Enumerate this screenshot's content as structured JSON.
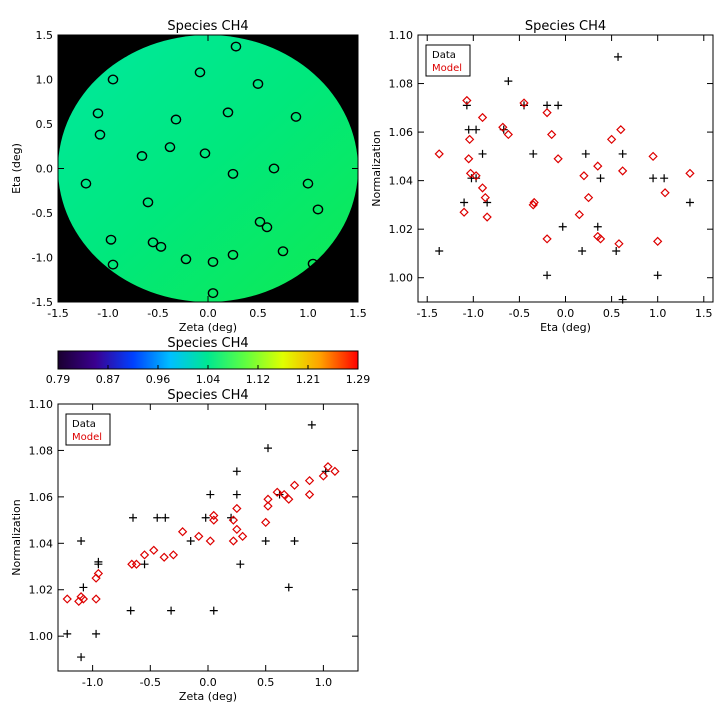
{
  "colors": {
    "data": "#000000",
    "model": "#dd0000",
    "colorbar": [
      "#1a0030",
      "#3a0090",
      "#0040ff",
      "#00c0ff",
      "#00e890",
      "#60ff40",
      "#e0ff00",
      "#ffa000",
      "#ff0000"
    ]
  },
  "map_panel": {
    "title": "Species CH4",
    "xlabel": "Zeta (deg)",
    "ylabel": "Eta (deg)",
    "xlim": [
      -1.5,
      1.5
    ],
    "ylim": [
      -1.5,
      1.5
    ],
    "xticks": [
      "-1.5",
      "-1.0",
      "-0.5",
      "0.0",
      "0.5",
      "1.0",
      "1.5"
    ],
    "yticks": [
      "-1.5",
      "-1.0",
      "-0.5",
      "0.0",
      "0.5",
      "1.0",
      "1.5"
    ],
    "circles": [
      [
        -0.95,
        1.0
      ],
      [
        0.28,
        1.37
      ],
      [
        -0.08,
        1.08
      ],
      [
        0.5,
        0.95
      ],
      [
        -1.1,
        0.62
      ],
      [
        -1.08,
        0.38
      ],
      [
        -0.32,
        0.55
      ],
      [
        0.2,
        0.63
      ],
      [
        0.88,
        0.58
      ],
      [
        -0.38,
        0.24
      ],
      [
        -0.03,
        0.17
      ],
      [
        -0.66,
        0.14
      ],
      [
        0.66,
        0.0
      ],
      [
        0.25,
        -0.06
      ],
      [
        -1.22,
        -0.17
      ],
      [
        1.0,
        -0.17
      ],
      [
        -0.6,
        -0.38
      ],
      [
        1.1,
        -0.46
      ],
      [
        0.52,
        -0.6
      ],
      [
        0.59,
        -0.66
      ],
      [
        -0.97,
        -0.8
      ],
      [
        -0.55,
        -0.83
      ],
      [
        -0.47,
        -0.88
      ],
      [
        0.75,
        -0.93
      ],
      [
        0.25,
        -0.97
      ],
      [
        -0.22,
        -1.02
      ],
      [
        0.05,
        -1.05
      ],
      [
        -0.95,
        -1.08
      ],
      [
        1.05,
        -1.07
      ],
      [
        0.05,
        -1.4
      ]
    ]
  },
  "colorbar": {
    "title": "Species CH4",
    "tick_labels": [
      "0.79",
      "0.87",
      "0.96",
      "1.04",
      "1.12",
      "1.21",
      "1.29"
    ]
  },
  "chart_data": [
    {
      "type": "scatter",
      "title": "Species CH4",
      "xlabel": "Eta (deg)",
      "ylabel": "Normalization",
      "xlim": [
        -1.6,
        1.6
      ],
      "ylim": [
        0.99,
        1.1
      ],
      "xticks": [
        "-1.5",
        "-1.0",
        "-0.5",
        "0.0",
        "0.5",
        "1.0",
        "1.5"
      ],
      "yticks": [
        "1.00",
        "1.02",
        "1.04",
        "1.06",
        "1.08",
        "1.10"
      ],
      "legend": {
        "position": "top-left",
        "entries": [
          "Data",
          "Model"
        ]
      },
      "series": [
        {
          "name": "Data",
          "marker": "plus",
          "points": [
            [
              0.57,
              1.091
            ],
            [
              -0.62,
              1.081
            ],
            [
              -1.07,
              1.071
            ],
            [
              -0.45,
              1.071
            ],
            [
              -0.2,
              1.071
            ],
            [
              -0.08,
              1.071
            ],
            [
              -1.05,
              1.061
            ],
            [
              -0.97,
              1.061
            ],
            [
              -0.67,
              1.061
            ],
            [
              -0.9,
              1.051
            ],
            [
              -0.35,
              1.051
            ],
            [
              0.22,
              1.051
            ],
            [
              0.62,
              1.051
            ],
            [
              -0.97,
              1.041
            ],
            [
              -1.02,
              1.041
            ],
            [
              0.38,
              1.041
            ],
            [
              0.95,
              1.041
            ],
            [
              1.07,
              1.041
            ],
            [
              -1.1,
              1.031
            ],
            [
              -0.85,
              1.031
            ],
            [
              1.35,
              1.031
            ],
            [
              -0.03,
              1.021
            ],
            [
              0.35,
              1.021
            ],
            [
              0.55,
              1.011
            ],
            [
              -1.37,
              1.011
            ],
            [
              0.18,
              1.011
            ],
            [
              -0.2,
              1.001
            ],
            [
              1.0,
              1.001
            ],
            [
              0.62,
              0.991
            ]
          ]
        },
        {
          "name": "Model",
          "marker": "diamond",
          "points": [
            [
              -1.07,
              1.073
            ],
            [
              -0.45,
              1.072
            ],
            [
              -0.9,
              1.066
            ],
            [
              -0.68,
              1.062
            ],
            [
              -0.62,
              1.059
            ],
            [
              0.6,
              1.061
            ],
            [
              -1.04,
              1.057
            ],
            [
              -0.2,
              1.068
            ],
            [
              -0.15,
              1.059
            ],
            [
              0.5,
              1.057
            ],
            [
              -1.37,
              1.051
            ],
            [
              -1.05,
              1.049
            ],
            [
              0.35,
              1.046
            ],
            [
              0.62,
              1.044
            ],
            [
              0.95,
              1.05
            ],
            [
              -0.08,
              1.049
            ],
            [
              1.35,
              1.043
            ],
            [
              -1.03,
              1.043
            ],
            [
              -0.97,
              1.042
            ],
            [
              0.2,
              1.042
            ],
            [
              -0.9,
              1.037
            ],
            [
              -0.87,
              1.033
            ],
            [
              -0.35,
              1.03
            ],
            [
              -0.34,
              1.031
            ],
            [
              0.25,
              1.033
            ],
            [
              1.08,
              1.035
            ],
            [
              -1.1,
              1.027
            ],
            [
              -0.85,
              1.025
            ],
            [
              0.15,
              1.026
            ],
            [
              0.35,
              1.017
            ],
            [
              0.38,
              1.016
            ],
            [
              -0.2,
              1.016
            ],
            [
              0.58,
              1.014
            ],
            [
              1.0,
              1.015
            ]
          ]
        }
      ]
    },
    {
      "type": "scatter",
      "title": "Species CH4",
      "xlabel": "Zeta (deg)",
      "ylabel": "Normalization",
      "xlim": [
        -1.3,
        1.3
      ],
      "ylim": [
        0.985,
        1.1
      ],
      "xticks": [
        "-1.0",
        "-0.5",
        "0.0",
        "0.5",
        "1.0"
      ],
      "yticks": [
        "1.00",
        "1.02",
        "1.04",
        "1.06",
        "1.08",
        "1.10"
      ],
      "legend": {
        "position": "top-left",
        "entries": [
          "Data",
          "Model"
        ]
      },
      "series": [
        {
          "name": "Data",
          "marker": "plus",
          "points": [
            [
              0.9,
              1.091
            ],
            [
              0.52,
              1.081
            ],
            [
              0.25,
              1.071
            ],
            [
              1.02,
              1.071
            ],
            [
              0.02,
              1.061
            ],
            [
              0.25,
              1.061
            ],
            [
              0.62,
              1.061
            ],
            [
              -0.65,
              1.051
            ],
            [
              -0.44,
              1.051
            ],
            [
              -0.37,
              1.051
            ],
            [
              -0.02,
              1.051
            ],
            [
              0.2,
              1.051
            ],
            [
              -1.1,
              1.041
            ],
            [
              -0.15,
              1.041
            ],
            [
              0.5,
              1.041
            ],
            [
              0.75,
              1.041
            ],
            [
              -0.95,
              1.032
            ],
            [
              -0.95,
              1.031
            ],
            [
              -0.55,
              1.031
            ],
            [
              0.28,
              1.031
            ],
            [
              -1.08,
              1.021
            ],
            [
              0.7,
              1.021
            ],
            [
              -0.67,
              1.011
            ],
            [
              -0.32,
              1.011
            ],
            [
              0.05,
              1.011
            ],
            [
              -1.22,
              1.001
            ],
            [
              -0.97,
              1.001
            ],
            [
              -1.1,
              0.991
            ]
          ]
        },
        {
          "name": "Model",
          "marker": "diamond",
          "points": [
            [
              1.1,
              1.071
            ],
            [
              1.04,
              1.073
            ],
            [
              1.0,
              1.069
            ],
            [
              0.88,
              1.067
            ],
            [
              0.75,
              1.065
            ],
            [
              0.88,
              1.061
            ],
            [
              0.66,
              1.061
            ],
            [
              0.6,
              1.062
            ],
            [
              0.52,
              1.059
            ],
            [
              0.7,
              1.059
            ],
            [
              0.52,
              1.056
            ],
            [
              0.25,
              1.055
            ],
            [
              0.22,
              1.05
            ],
            [
              0.25,
              1.046
            ],
            [
              0.5,
              1.049
            ],
            [
              0.05,
              1.052
            ],
            [
              0.05,
              1.05
            ],
            [
              0.02,
              1.041
            ],
            [
              -0.22,
              1.045
            ],
            [
              -0.08,
              1.043
            ],
            [
              0.22,
              1.041
            ],
            [
              0.3,
              1.043
            ],
            [
              -0.3,
              1.035
            ],
            [
              -0.38,
              1.034
            ],
            [
              -0.47,
              1.037
            ],
            [
              -0.55,
              1.035
            ],
            [
              -0.62,
              1.031
            ],
            [
              -0.66,
              1.031
            ],
            [
              -0.97,
              1.025
            ],
            [
              -0.95,
              1.027
            ],
            [
              -1.08,
              1.016
            ],
            [
              -1.1,
              1.017
            ],
            [
              -1.12,
              1.015
            ],
            [
              -1.22,
              1.016
            ],
            [
              -0.97,
              1.016
            ]
          ]
        }
      ]
    }
  ]
}
